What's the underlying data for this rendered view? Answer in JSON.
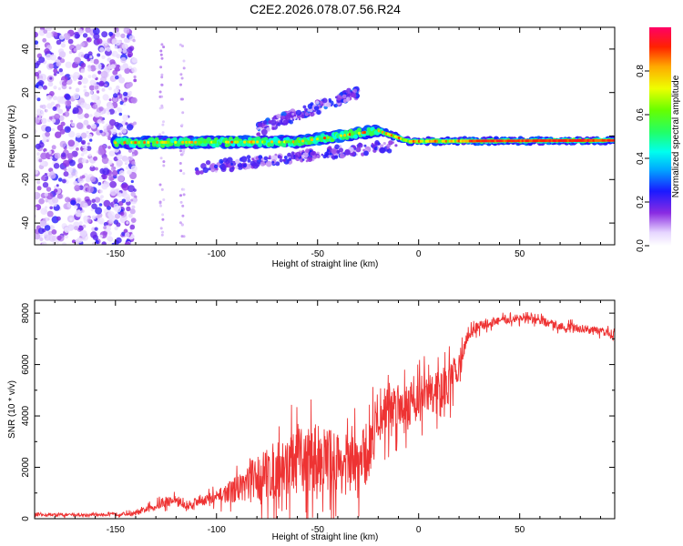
{
  "title": "C2E2.2026.078.07.56.R24",
  "colors": {
    "snr_line": "#ee3333",
    "axis": "#000000",
    "background": "#ffffff"
  },
  "chart_data": [
    {
      "type": "heatmap",
      "title": "C2E2.2026.078.07.56.R24",
      "xlabel": "Height of straight line (km)",
      "ylabel": "Frequency (Hz)",
      "xlim": [
        -190,
        97
      ],
      "ylim": [
        -50,
        50
      ],
      "xticks": [
        -150,
        -100,
        -50,
        0,
        50
      ],
      "yticks": [
        -40,
        -20,
        0,
        20,
        40
      ],
      "colorbar": {
        "label": "Normalized spectral amplitude",
        "range": [
          0,
          1
        ],
        "ticks": [
          "0.0",
          "0.2",
          "0.4",
          "0.6",
          "0.8"
        ],
        "tick_values": [
          0.0,
          0.2,
          0.4,
          0.6,
          0.8
        ]
      },
      "features": [
        {
          "name": "noise-region",
          "x": [
            -190,
            -140
          ],
          "freq": [
            -50,
            50
          ],
          "amplitude": 0.15
        },
        {
          "name": "main-track",
          "x": [
            -150,
            97
          ],
          "freq_start": -3,
          "freq_end": -2,
          "amplitude": 0.85
        },
        {
          "name": "upper-branch",
          "x": [
            -80,
            -30
          ],
          "freq_start": 3,
          "freq_end": 20,
          "amplitude": 0.25
        },
        {
          "name": "lower-branch",
          "x": [
            -110,
            -10
          ],
          "freq_start": -15,
          "freq_end": -4,
          "amplitude": 0.2
        }
      ]
    },
    {
      "type": "line",
      "xlabel": "Height of straight line (km)",
      "ylabel": "SNR (10 * v/v)",
      "xlim": [
        -190,
        97
      ],
      "ylim": [
        0,
        8500
      ],
      "xticks": [
        -150,
        -100,
        -50,
        0,
        50
      ],
      "yticks": [
        0,
        2000,
        4000,
        6000,
        8000
      ],
      "series": [
        {
          "name": "SNR",
          "color": "#ee3333",
          "x": [
            -190,
            -160,
            -140,
            -130,
            -120,
            -115,
            -110,
            -100,
            -90,
            -85,
            -80,
            -70,
            -60,
            -50,
            -40,
            -30,
            -25,
            -20,
            -15,
            -10,
            -5,
            0,
            10,
            15,
            20,
            25,
            30,
            40,
            50,
            60,
            70,
            80,
            90,
            97
          ],
          "base": [
            150,
            150,
            200,
            500,
            750,
            450,
            700,
            800,
            1200,
            1400,
            1600,
            1900,
            2200,
            2400,
            2200,
            2000,
            2600,
            4000,
            4300,
            4500,
            4500,
            4700,
            5000,
            5200,
            6000,
            7200,
            7500,
            7700,
            7800,
            7700,
            7500,
            7400,
            7300,
            7200
          ],
          "noise": [
            60,
            60,
            100,
            200,
            250,
            200,
            250,
            350,
            600,
            900,
            1200,
            1400,
            1600,
            1700,
            1500,
            1500,
            1600,
            1300,
            1300,
            1200,
            1100,
            1100,
            1000,
            1000,
            700,
            300,
            250,
            200,
            200,
            200,
            200,
            200,
            200,
            200
          ]
        }
      ]
    }
  ]
}
